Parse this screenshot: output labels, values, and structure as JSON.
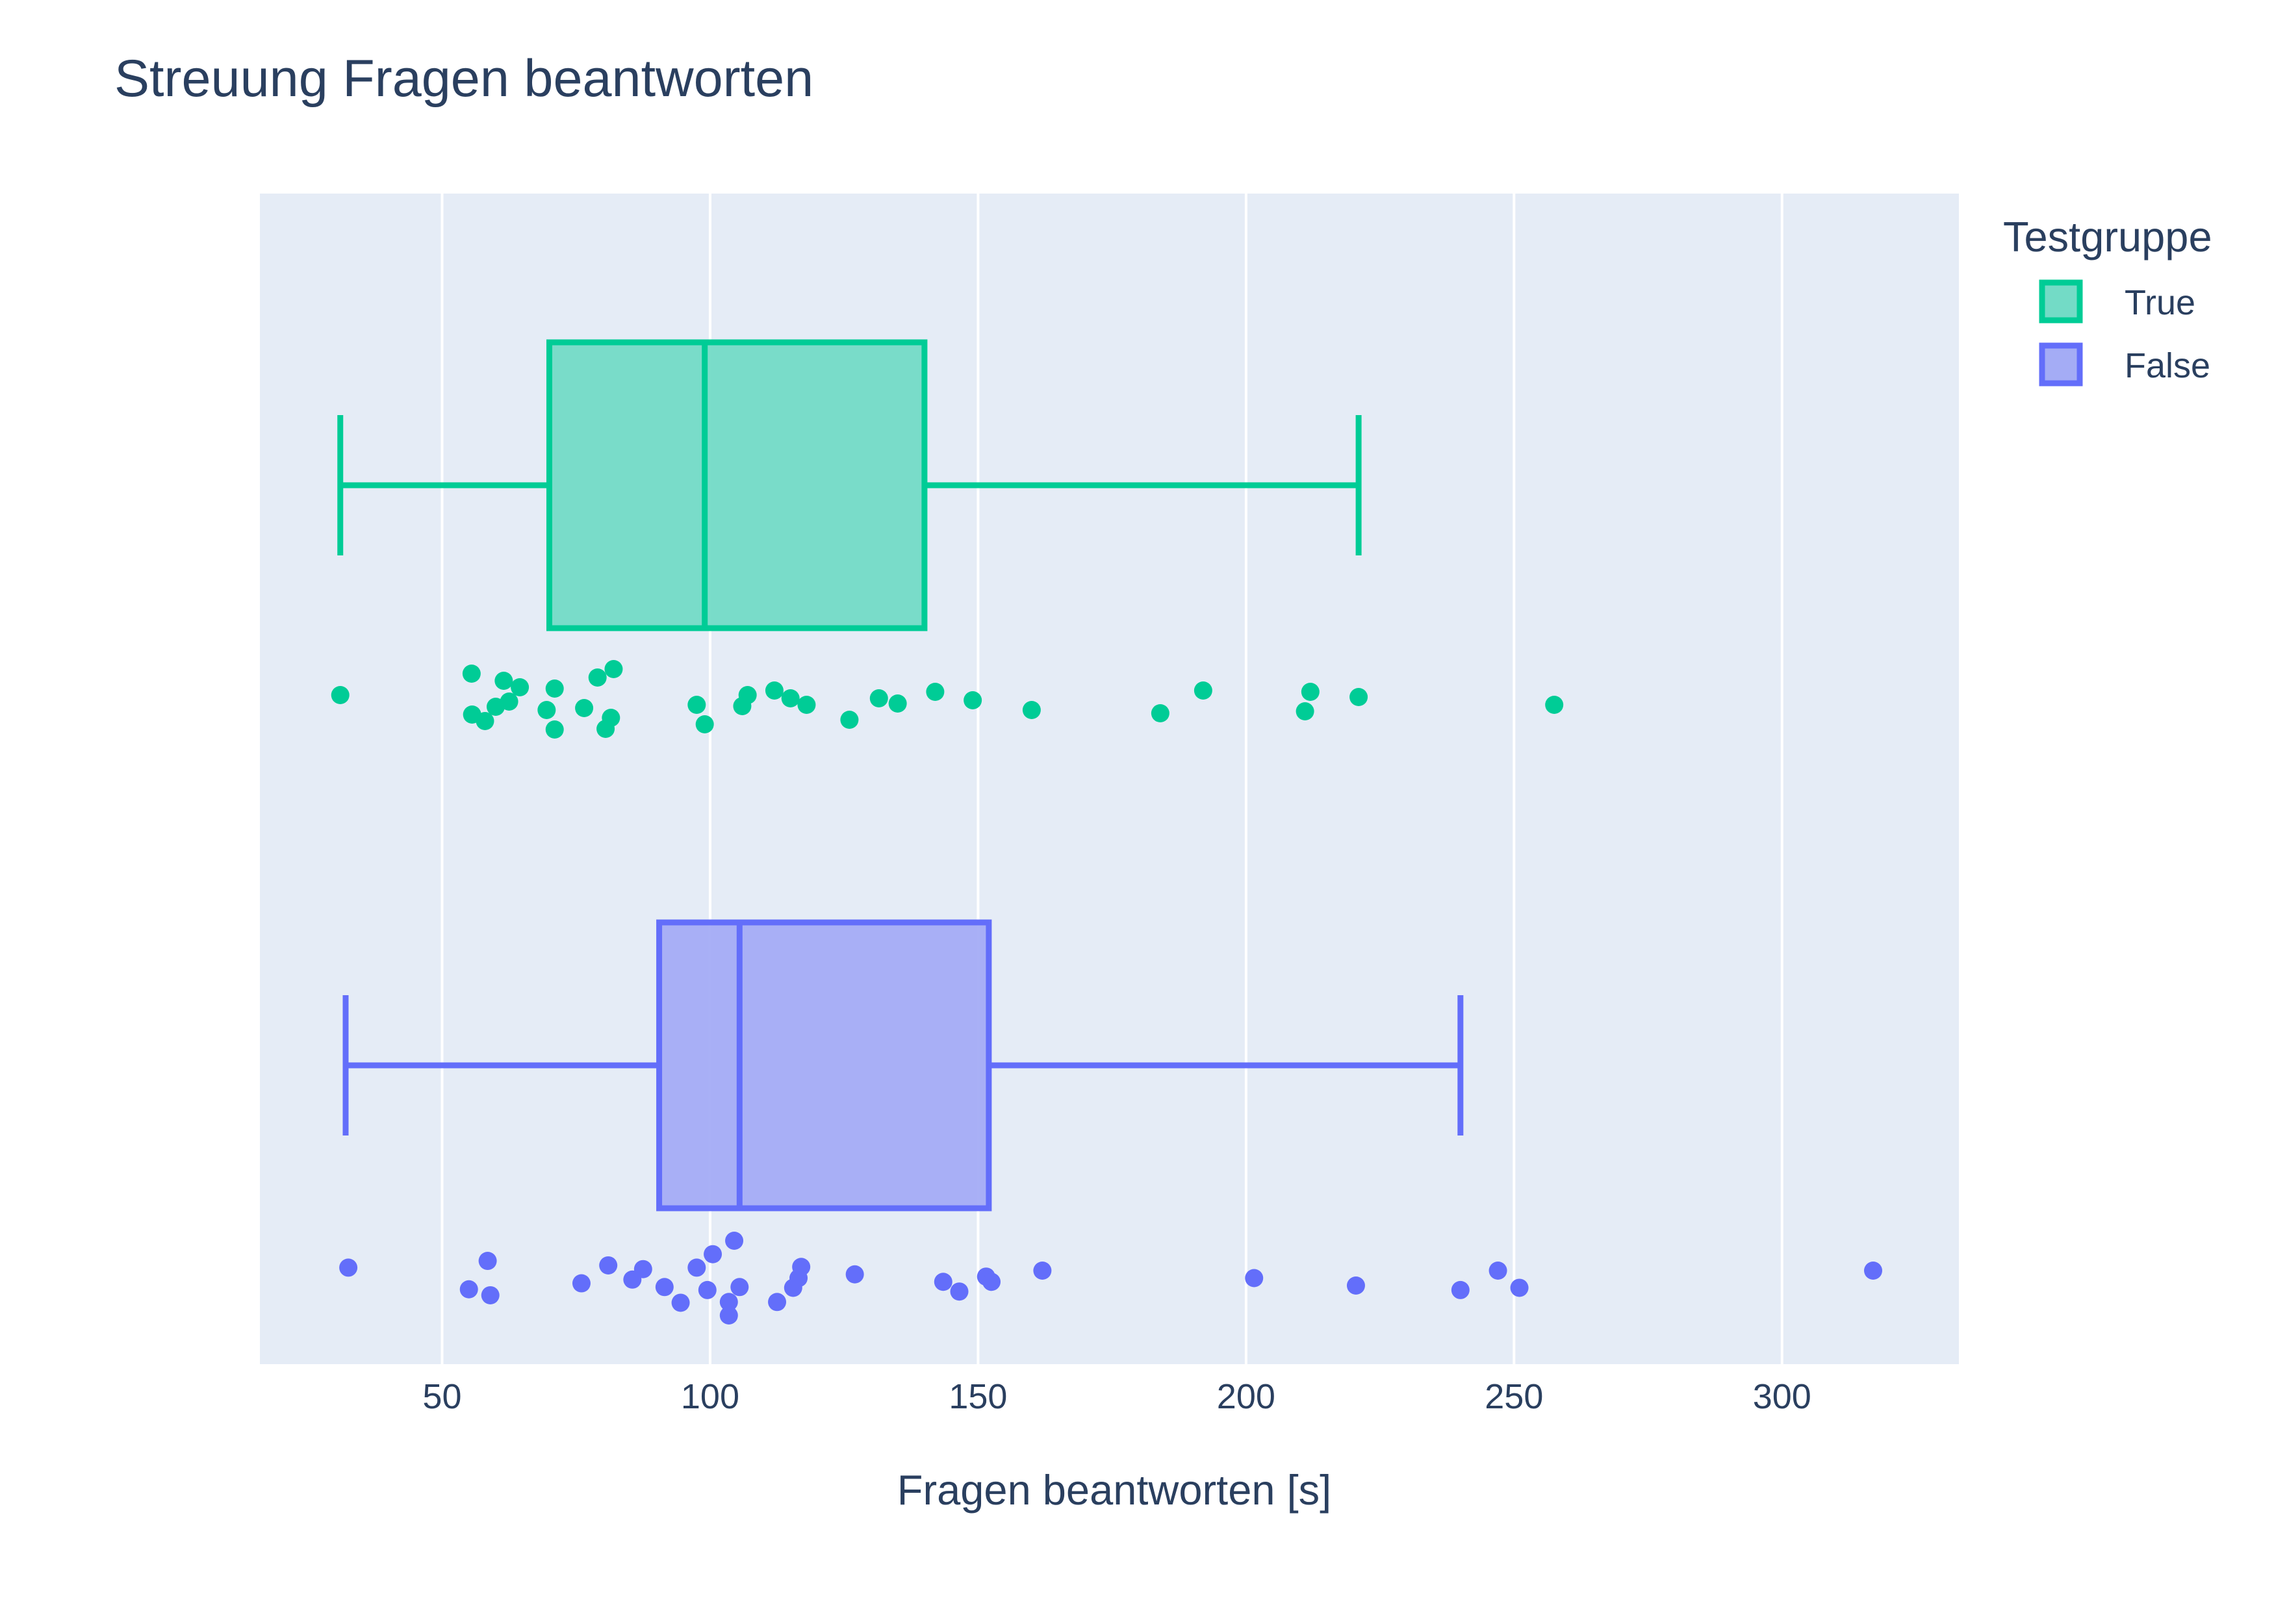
{
  "chart_data": {
    "type": "box",
    "title": "Streuung Fragen beantworten",
    "xlabel": "Fragen beantworten [s]",
    "ylabel": "",
    "orientation": "horizontal",
    "xlim": [
      16,
      333
    ],
    "xticks": [
      50,
      100,
      150,
      200,
      250,
      300
    ],
    "grid": true,
    "legend": {
      "title": "Testgruppe",
      "position": "top-right"
    },
    "series": [
      {
        "name": "True",
        "color": "#00cc96",
        "fill": "#73dbc6",
        "box": {
          "lowerfence": 31,
          "q1": 70,
          "median": 99,
          "q3": 140,
          "upperfence": 221
        },
        "points": [
          [
            31,
            0.45
          ],
          [
            55.5,
            0.12
          ],
          [
            55.6,
            0.75
          ],
          [
            58,
            0.85
          ],
          [
            60,
            0.63
          ],
          [
            61.5,
            0.23
          ],
          [
            62.5,
            0.55
          ],
          [
            64.5,
            0.33
          ],
          [
            69.5,
            0.68
          ],
          [
            71,
            0.35
          ],
          [
            71,
            0.98
          ],
          [
            76.5,
            0.65
          ],
          [
            79,
            0.18
          ],
          [
            80.5,
            0.97
          ],
          [
            81.5,
            0.8
          ],
          [
            82,
            0.05
          ],
          [
            97.5,
            0.6
          ],
          [
            99,
            0.9
          ],
          [
            106,
            0.62
          ],
          [
            107,
            0.45
          ],
          [
            112,
            0.38
          ],
          [
            115,
            0.5
          ],
          [
            118,
            0.6
          ],
          [
            126,
            0.83
          ],
          [
            131.5,
            0.5
          ],
          [
            135,
            0.58
          ],
          [
            142,
            0.4
          ],
          [
            149,
            0.53
          ],
          [
            160,
            0.68
          ],
          [
            184,
            0.73
          ],
          [
            192,
            0.38
          ],
          [
            211,
            0.7
          ],
          [
            212,
            0.4
          ],
          [
            221,
            0.48
          ],
          [
            257.5,
            0.6
          ]
        ]
      },
      {
        "name": "False",
        "color": "#636efa",
        "fill": "#a4acf5",
        "box": {
          "lowerfence": 32,
          "q1": 90.5,
          "median": 105.5,
          "q3": 152,
          "upperfence": 240
        },
        "points": [
          [
            32.5,
            0.36
          ],
          [
            55,
            0.65
          ],
          [
            58.5,
            0.27
          ],
          [
            59,
            0.73
          ],
          [
            76,
            0.57
          ],
          [
            81,
            0.33
          ],
          [
            85.5,
            0.52
          ],
          [
            87.5,
            0.38
          ],
          [
            91.5,
            0.62
          ],
          [
            94.5,
            0.83
          ],
          [
            97.5,
            0.36
          ],
          [
            99.5,
            0.66
          ],
          [
            100.5,
            0.18
          ],
          [
            103.5,
            0.82
          ],
          [
            103.5,
            1.0
          ],
          [
            104.5,
            0.0
          ],
          [
            105.5,
            0.62
          ],
          [
            112.5,
            0.82
          ],
          [
            115.5,
            0.63
          ],
          [
            116.5,
            0.5
          ],
          [
            117,
            0.35
          ],
          [
            127,
            0.45
          ],
          [
            143.5,
            0.55
          ],
          [
            146.5,
            0.68
          ],
          [
            151.5,
            0.48
          ],
          [
            152.5,
            0.55
          ],
          [
            162,
            0.4
          ],
          [
            201.5,
            0.5
          ],
          [
            220.5,
            0.6
          ],
          [
            240,
            0.66
          ],
          [
            247,
            0.4
          ],
          [
            251,
            0.63
          ],
          [
            317,
            0.4
          ]
        ]
      }
    ]
  }
}
